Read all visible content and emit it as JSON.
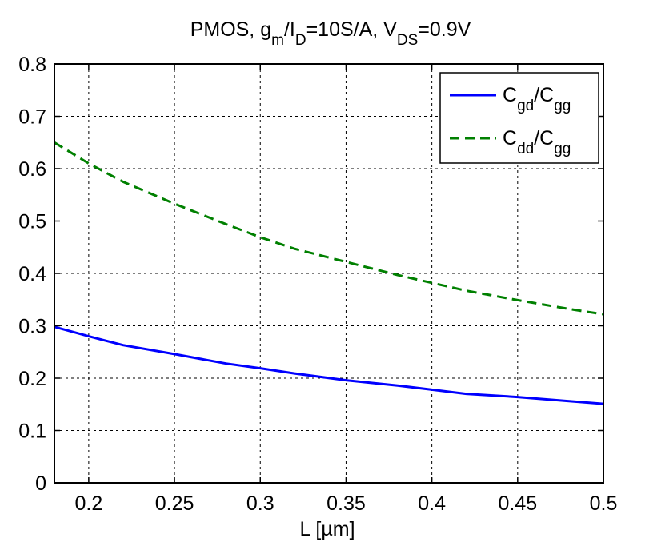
{
  "chart_data": {
    "type": "line",
    "title": {
      "parts": [
        {
          "text": "PMOS, g",
          "sub": false
        },
        {
          "text": "m",
          "sub": true
        },
        {
          "text": "/I",
          "sub": false
        },
        {
          "text": "D",
          "sub": true
        },
        {
          "text": "=10S/A, V",
          "sub": false
        },
        {
          "text": "DS",
          "sub": true
        },
        {
          "text": "=0.9V",
          "sub": false
        }
      ]
    },
    "xlabel": "L  [µm]",
    "ylabel": "",
    "xlim": [
      0.18,
      0.5
    ],
    "ylim": [
      0,
      0.8
    ],
    "xticks": [
      0.2,
      0.25,
      0.3,
      0.35,
      0.4,
      0.45,
      0.5
    ],
    "xtick_labels": [
      "0.2",
      "0.25",
      "0.3",
      "0.35",
      "0.4",
      "0.45",
      "0.5"
    ],
    "yticks": [
      0,
      0.1,
      0.2,
      0.3,
      0.4,
      0.5,
      0.6,
      0.7,
      0.8
    ],
    "ytick_labels": [
      "0",
      "0.1",
      "0.2",
      "0.3",
      "0.4",
      "0.5",
      "0.6",
      "0.7",
      "0.8"
    ],
    "grid": true,
    "legend_position": "top-right",
    "series": [
      {
        "name_parts": [
          {
            "text": "C",
            "sub": false
          },
          {
            "text": "gd",
            "sub": true
          },
          {
            "text": "/C",
            "sub": false
          },
          {
            "text": "gg",
            "sub": true
          }
        ],
        "color": "#0000ff",
        "dash": "solid",
        "x": [
          0.18,
          0.2,
          0.22,
          0.25,
          0.28,
          0.3,
          0.32,
          0.35,
          0.38,
          0.4,
          0.42,
          0.45,
          0.48,
          0.5
        ],
        "y": [
          0.298,
          0.28,
          0.263,
          0.246,
          0.228,
          0.219,
          0.209,
          0.196,
          0.186,
          0.178,
          0.17,
          0.164,
          0.156,
          0.151
        ]
      },
      {
        "name_parts": [
          {
            "text": "C",
            "sub": false
          },
          {
            "text": "dd",
            "sub": true
          },
          {
            "text": "/C",
            "sub": false
          },
          {
            "text": "gg",
            "sub": true
          }
        ],
        "color": "#008000",
        "dash": "dashed",
        "x": [
          0.18,
          0.2,
          0.22,
          0.25,
          0.28,
          0.3,
          0.32,
          0.35,
          0.38,
          0.4,
          0.42,
          0.45,
          0.48,
          0.5
        ],
        "y": [
          0.65,
          0.61,
          0.575,
          0.533,
          0.494,
          0.469,
          0.447,
          0.422,
          0.397,
          0.382,
          0.367,
          0.349,
          0.332,
          0.322
        ]
      }
    ]
  }
}
